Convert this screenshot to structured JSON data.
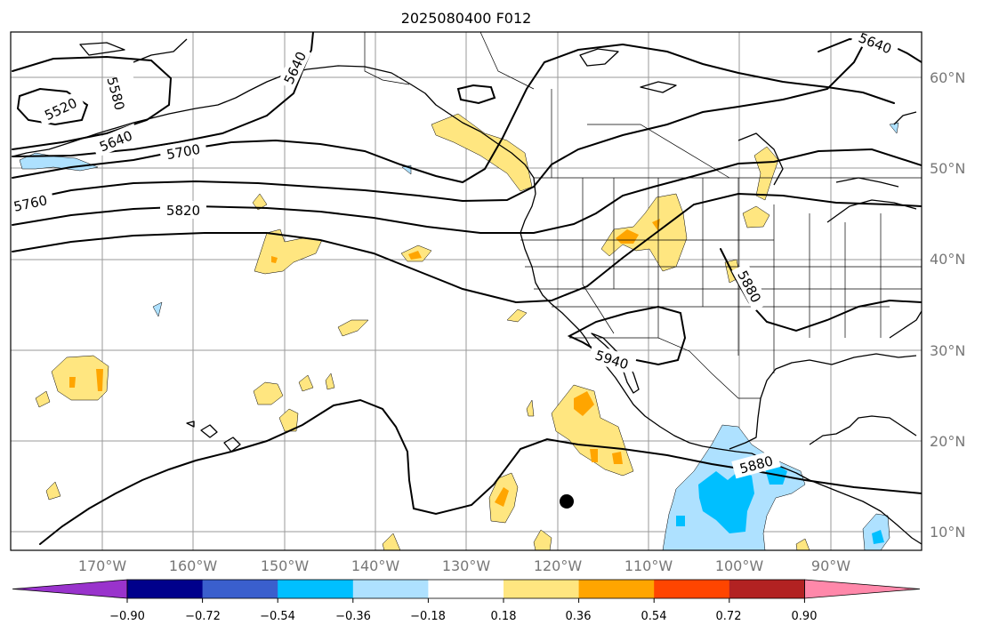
{
  "title": "2025080400 F012",
  "latitude_labels": [
    "60°N",
    "50°N",
    "40°N",
    "30°N",
    "20°N",
    "10°N"
  ],
  "longitude_labels": [
    "170°W",
    "160°W",
    "150°W",
    "140°W",
    "130°W",
    "120°W",
    "110°W",
    "100°W",
    "90°W"
  ],
  "contour_labels": [
    "5520",
    "5580",
    "5640",
    "5640",
    "5700",
    "5760",
    "5820",
    "5880",
    "5880",
    "5940",
    "5640"
  ],
  "colorbar": {
    "tick_labels": [
      "−0.90",
      "−0.72",
      "−0.54",
      "−0.36",
      "−0.18",
      "0.18",
      "0.36",
      "0.54",
      "0.72",
      "0.90"
    ],
    "colors": [
      "#9933cc",
      "#00008b",
      "#3a5fcd",
      "#00bfff",
      "#aee1ff",
      "#ffffff",
      "#ffe680",
      "#ffa500",
      "#ff4500",
      "#b22222",
      "#ff88aa"
    ]
  },
  "point_marker": {
    "lon": -119,
    "lat": 13.3
  }
}
